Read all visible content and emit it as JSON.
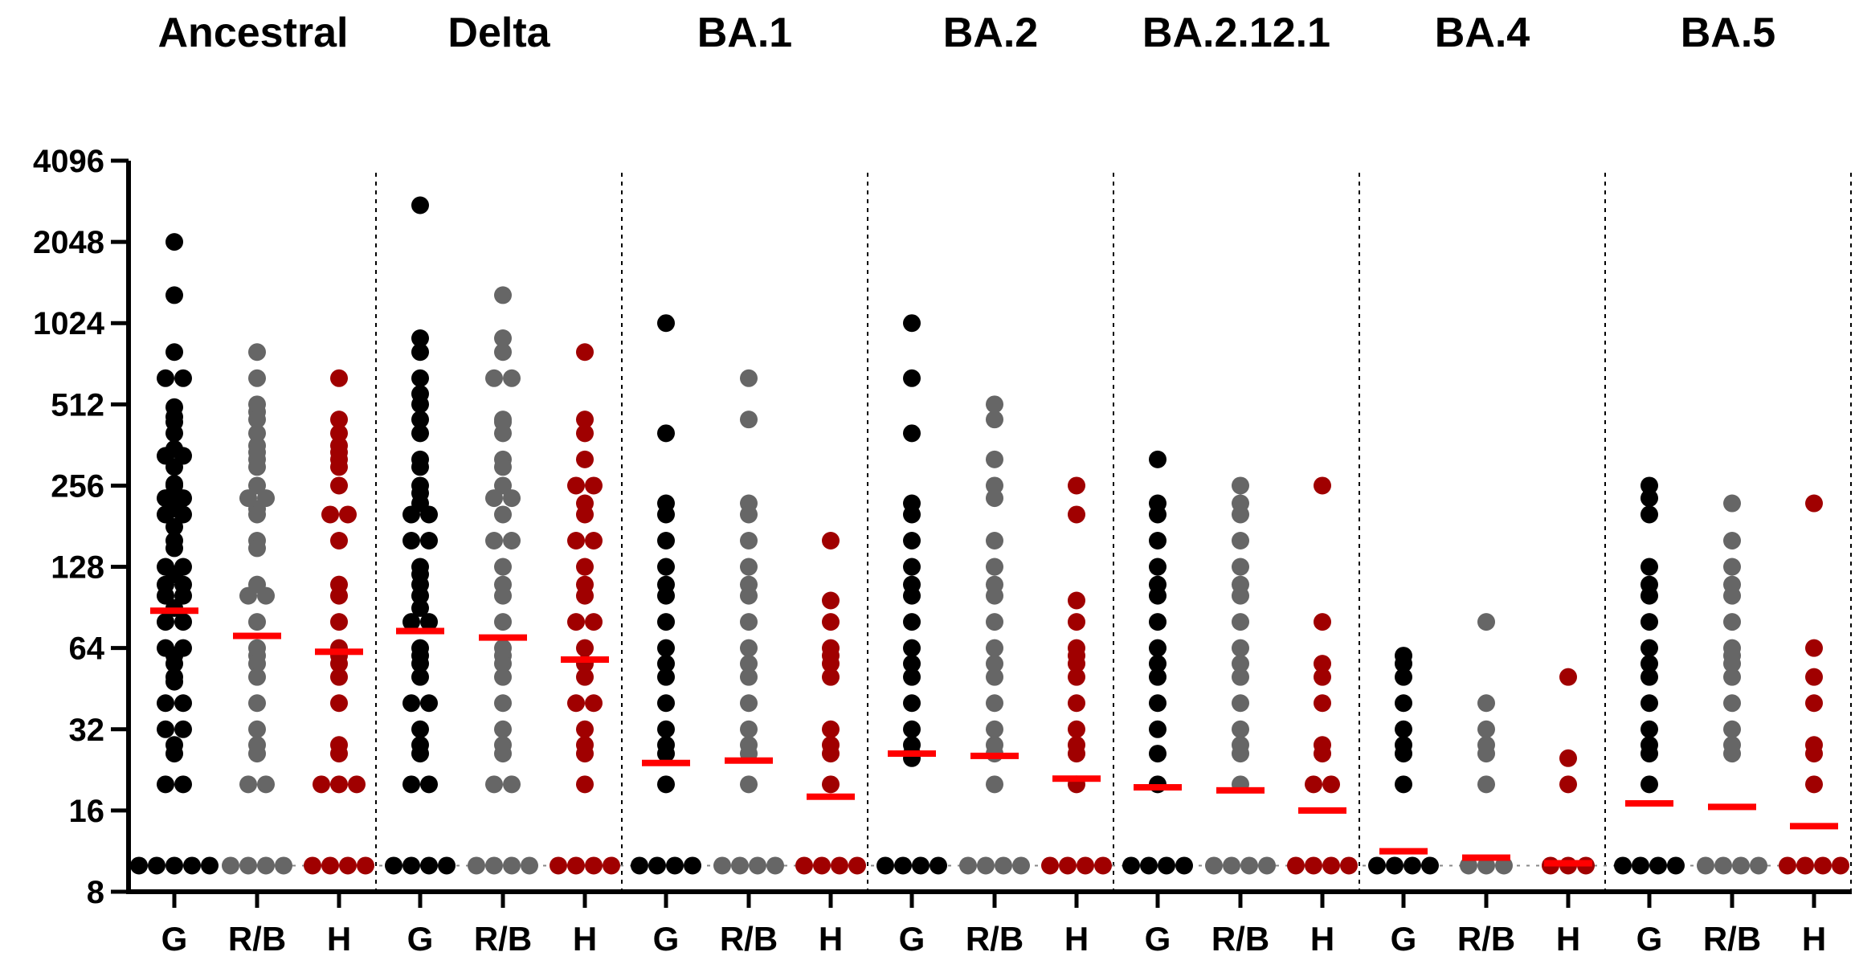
{
  "chart_data": {
    "type": "scatter",
    "y_scale": "log2",
    "ylim": [
      8,
      4096
    ],
    "y_ticks": [
      "4096",
      "2048",
      "1024",
      "512",
      "256",
      "128",
      "64",
      "32",
      "16",
      "8"
    ],
    "y_tick_values": [
      4096,
      2048,
      1024,
      512,
      256,
      128,
      64,
      32,
      16,
      8
    ],
    "limit_of_detection": 10,
    "groups": [
      "G",
      "R/B",
      "H"
    ],
    "group_colors": [
      "#000000",
      "#666666",
      "#a00000"
    ],
    "geomean_color": "#ff0000",
    "panels": [
      {
        "title": "Ancestral",
        "series": [
          {
            "name": "G",
            "geomean": 88,
            "values": [
              2048,
              1300,
              800,
              640,
              640,
              500,
              460,
              440,
              400,
              350,
              330,
              320,
              300,
              260,
              256,
              240,
              230,
              220,
              210,
              200,
              200,
              180,
              160,
              150,
              128,
              128,
              120,
              110,
              110,
              100,
              100,
              90,
              80,
              80,
              64,
              64,
              60,
              56,
              50,
              48,
              40,
              40,
              32,
              32,
              28,
              26,
              20,
              20,
              10,
              10,
              10,
              10,
              10
            ]
          },
          {
            "name": "R/B",
            "geomean": 71,
            "values": [
              800,
              640,
              512,
              480,
              450,
              400,
              360,
              340,
              320,
              300,
              256,
              230,
              220,
              210,
              200,
              160,
              150,
              110,
              100,
              100,
              80,
              64,
              60,
              56,
              50,
              40,
              32,
              28,
              26,
              20,
              20,
              10,
              10,
              10,
              10
            ]
          },
          {
            "name": "H",
            "geomean": 62,
            "values": [
              640,
              450,
              400,
              360,
              340,
              320,
              300,
              256,
              200,
              200,
              160,
              110,
              100,
              80,
              64,
              60,
              56,
              50,
              40,
              28,
              26,
              20,
              20,
              20,
              10,
              10,
              10,
              10
            ]
          }
        ]
      },
      {
        "title": "Delta",
        "series": [
          {
            "name": "G",
            "geomean": 74,
            "values": [
              2800,
              900,
              800,
              640,
              560,
              512,
              450,
              400,
              320,
              300,
              256,
              240,
              220,
              200,
              200,
              160,
              160,
              128,
              120,
              110,
              100,
              90,
              80,
              80,
              64,
              60,
              56,
              50,
              40,
              40,
              32,
              28,
              26,
              20,
              20,
              10,
              10,
              10,
              10
            ]
          },
          {
            "name": "R/B",
            "geomean": 70,
            "values": [
              1300,
              900,
              800,
              640,
              640,
              450,
              440,
              400,
              320,
              300,
              256,
              230,
              220,
              200,
              160,
              160,
              128,
              110,
              100,
              80,
              64,
              60,
              56,
              50,
              40,
              32,
              28,
              26,
              20,
              20,
              10,
              10,
              10,
              10
            ]
          },
          {
            "name": "H",
            "geomean": 58,
            "values": [
              800,
              450,
              400,
              320,
              256,
              256,
              220,
              200,
              160,
              160,
              128,
              110,
              100,
              80,
              80,
              64,
              56,
              50,
              40,
              40,
              32,
              28,
              26,
              20,
              10,
              10,
              10,
              10
            ]
          }
        ]
      },
      {
        "title": "BA.1",
        "series": [
          {
            "name": "G",
            "geomean": 24,
            "values": [
              1024,
              400,
              220,
              200,
              160,
              128,
              110,
              100,
              80,
              64,
              56,
              50,
              40,
              32,
              28,
              26,
              20,
              10,
              10,
              10,
              10
            ]
          },
          {
            "name": "R/B",
            "geomean": 24.5,
            "values": [
              640,
              450,
              220,
              200,
              160,
              128,
              110,
              100,
              80,
              64,
              56,
              50,
              40,
              32,
              28,
              26,
              20,
              10,
              10,
              10,
              10
            ]
          },
          {
            "name": "H",
            "geomean": 18,
            "values": [
              160,
              96,
              80,
              64,
              60,
              56,
              50,
              32,
              28,
              26,
              20,
              10,
              10,
              10,
              10
            ]
          }
        ]
      },
      {
        "title": "BA.2",
        "series": [
          {
            "name": "G",
            "geomean": 26,
            "values": [
              1024,
              640,
              400,
              220,
              200,
              160,
              128,
              110,
              100,
              80,
              64,
              56,
              50,
              40,
              32,
              28,
              26,
              25,
              10,
              10,
              10,
              10
            ]
          },
          {
            "name": "R/B",
            "geomean": 25.5,
            "values": [
              512,
              450,
              320,
              256,
              230,
              160,
              128,
              110,
              100,
              80,
              64,
              56,
              50,
              40,
              32,
              28,
              26,
              20,
              10,
              10,
              10,
              10
            ]
          },
          {
            "name": "H",
            "geomean": 21,
            "values": [
              256,
              200,
              96,
              80,
              64,
              60,
              56,
              50,
              40,
              32,
              28,
              26,
              20,
              10,
              10,
              10,
              10
            ]
          }
        ]
      },
      {
        "title": "BA.2.12.1",
        "series": [
          {
            "name": "G",
            "geomean": 19.5,
            "values": [
              320,
              220,
              200,
              160,
              128,
              110,
              100,
              80,
              64,
              56,
              50,
              40,
              32,
              26,
              20,
              10,
              10,
              10,
              10
            ]
          },
          {
            "name": "R/B",
            "geomean": 19,
            "values": [
              256,
              220,
              200,
              160,
              128,
              110,
              100,
              80,
              64,
              56,
              50,
              40,
              32,
              28,
              26,
              20,
              10,
              10,
              10,
              10
            ]
          },
          {
            "name": "H",
            "geomean": 16,
            "values": [
              256,
              80,
              56,
              50,
              40,
              28,
              26,
              20,
              20,
              10,
              10,
              10,
              10
            ]
          }
        ]
      },
      {
        "title": "BA.4",
        "series": [
          {
            "name": "G",
            "geomean": 11.3,
            "values": [
              60,
              56,
              50,
              40,
              32,
              28,
              26,
              20,
              10,
              10,
              10,
              10
            ]
          },
          {
            "name": "R/B",
            "geomean": 10.7,
            "values": [
              80,
              40,
              32,
              28,
              26,
              20,
              10,
              10,
              10
            ]
          },
          {
            "name": "H",
            "geomean": 10.2,
            "values": [
              50,
              25,
              20,
              10,
              10,
              10
            ]
          }
        ]
      },
      {
        "title": "BA.5",
        "series": [
          {
            "name": "G",
            "geomean": 17,
            "values": [
              256,
              230,
              200,
              128,
              110,
              100,
              80,
              64,
              56,
              50,
              40,
              32,
              28,
              26,
              20,
              10,
              10,
              10,
              10
            ]
          },
          {
            "name": "R/B",
            "geomean": 16.5,
            "values": [
              220,
              160,
              128,
              110,
              100,
              80,
              64,
              60,
              56,
              50,
              40,
              32,
              28,
              26,
              10,
              10,
              10,
              10
            ]
          },
          {
            "name": "H",
            "geomean": 14,
            "values": [
              220,
              64,
              50,
              40,
              28,
              26,
              20,
              10,
              10,
              10,
              10
            ]
          }
        ]
      }
    ]
  }
}
